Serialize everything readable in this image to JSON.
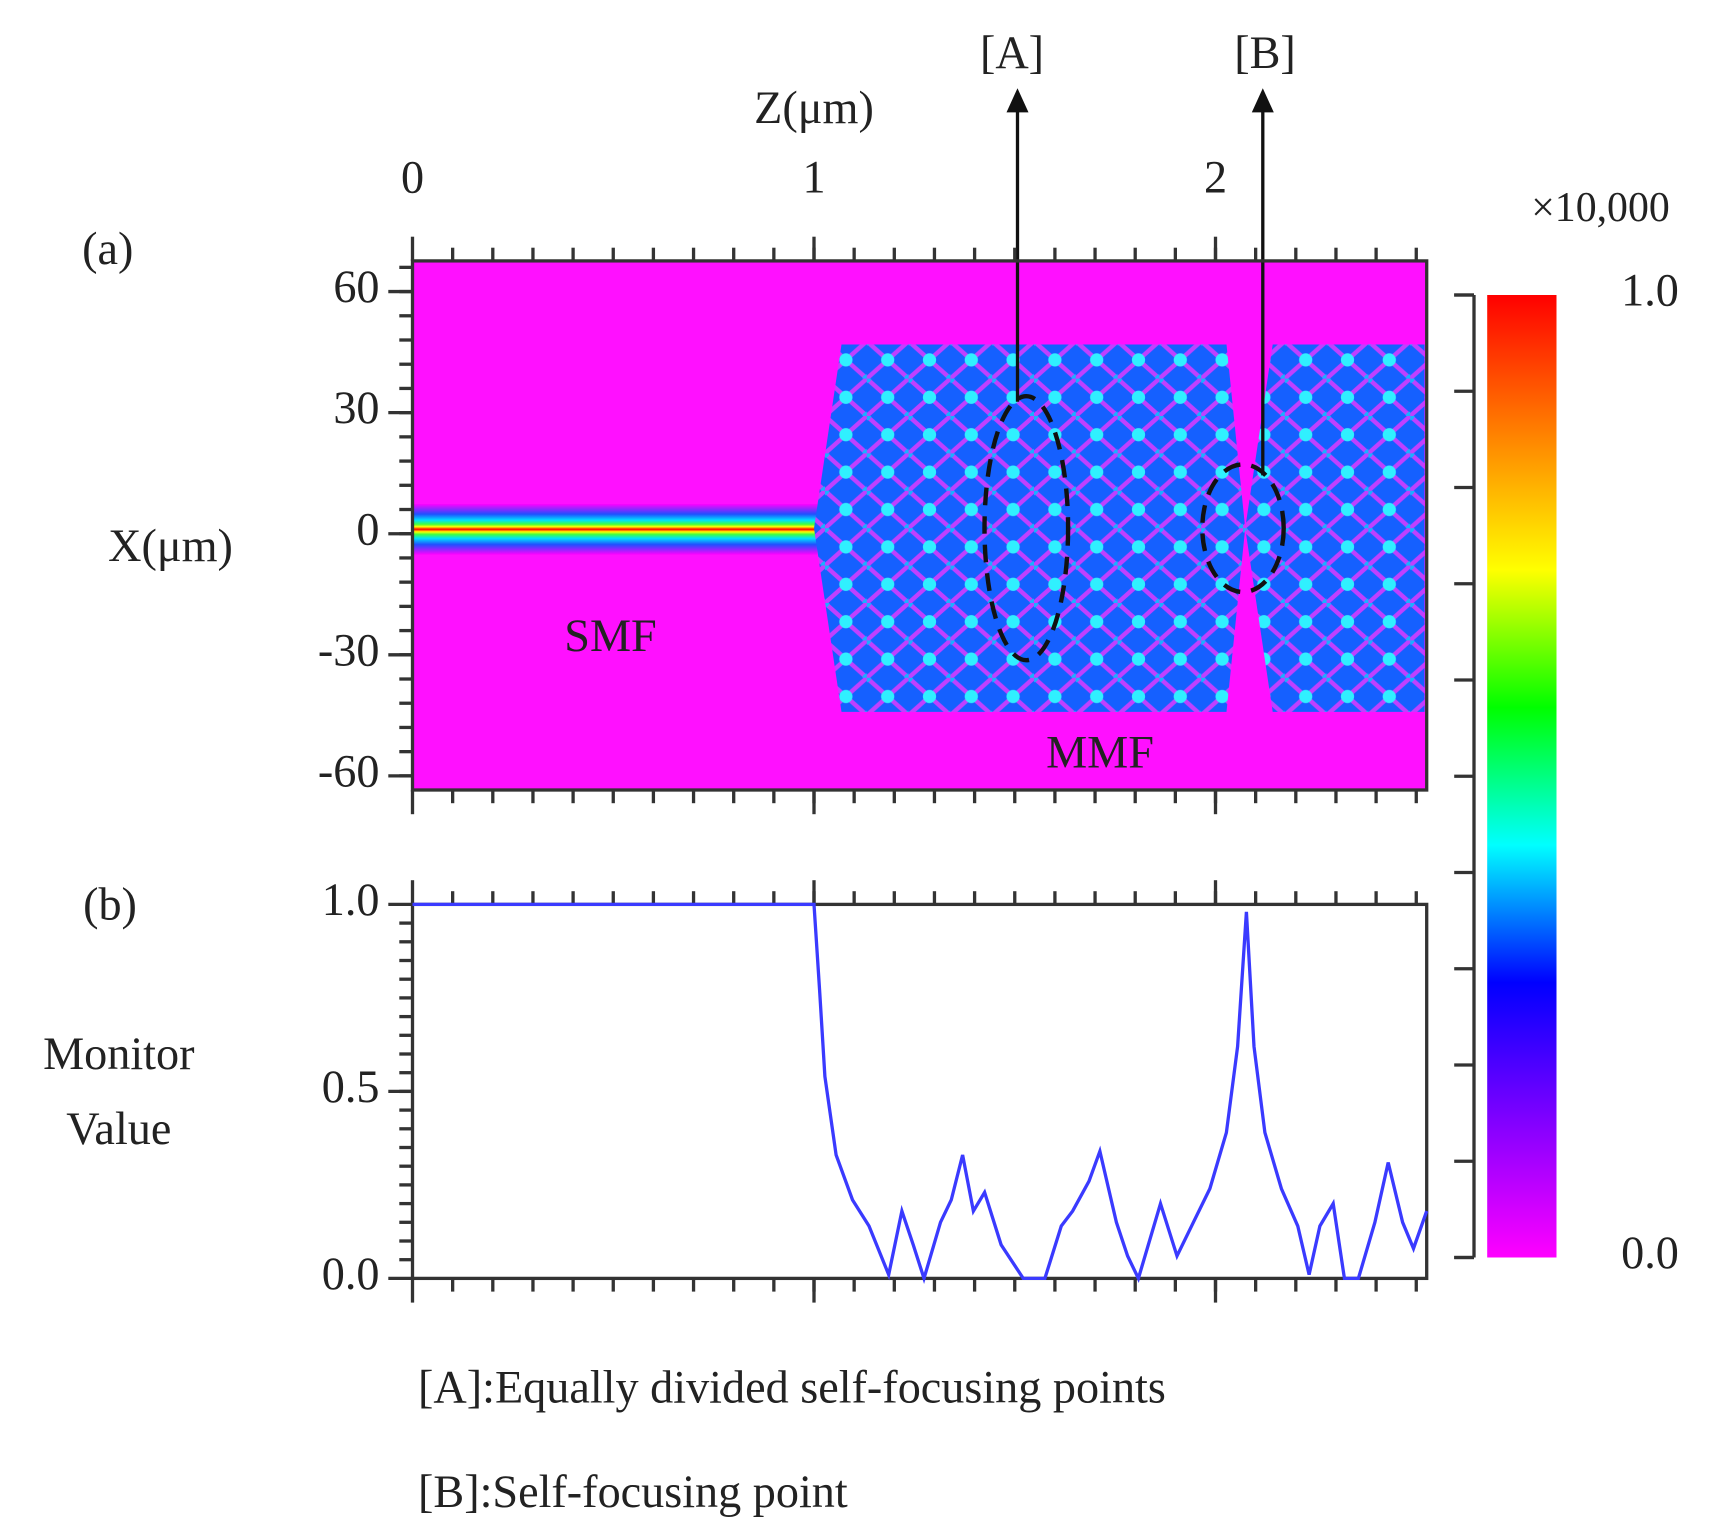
{
  "chart_data": [
    {
      "type": "heatmap",
      "panel_label": "(a)",
      "xlabel": "Z(μm)",
      "ylabel": "X(μm)",
      "xlim": [
        0,
        2.526
      ],
      "xticks": [
        0,
        1,
        2
      ],
      "ylim": [
        -63.5,
        67.6
      ],
      "yticks": [
        -60,
        -30,
        0,
        30,
        60
      ],
      "regions": [
        "SMF",
        "MMF"
      ],
      "annotations": [
        "[A]",
        "[B]"
      ],
      "colorbar": {
        "label": "×10,000",
        "colors": [
          "#ff00ff",
          "#8000ff",
          "#0000ff",
          "#00ffff",
          "#00ff00",
          "#ffff00",
          "#ff8000",
          "#ff0000"
        ],
        "lim": [
          0,
          1
        ],
        "ticks": [
          {
            "value": 0,
            "label": "0.0"
          },
          {
            "value": 1,
            "label": "1.0"
          }
        ]
      }
    },
    {
      "type": "line",
      "panel_label": "(b)",
      "ylabel": [
        "Monitor",
        "Value"
      ],
      "xlim": [
        0,
        2.526
      ],
      "xticks": [
        0,
        1,
        2
      ],
      "ylim": [
        0,
        1
      ],
      "yticks": [
        {
          "value": 0,
          "label": "0.0"
        },
        {
          "value": 0.5,
          "label": "0.5"
        },
        {
          "value": 1,
          "label": "1.0"
        }
      ],
      "x": [
        0,
        1.0,
        1.014,
        1.027,
        1.055,
        1.096,
        1.137,
        1.186,
        1.219,
        1.247,
        1.274,
        1.315,
        1.342,
        1.37,
        1.397,
        1.425,
        1.466,
        1.521,
        1.575,
        1.616,
        1.644,
        1.685,
        1.712,
        1.753,
        1.781,
        1.808,
        1.863,
        1.904,
        1.945,
        1.986,
        2.027,
        2.055,
        2.077,
        2.096,
        2.123,
        2.164,
        2.205,
        2.233,
        2.26,
        2.293,
        2.321,
        2.356,
        2.397,
        2.43,
        2.466,
        2.493,
        2.526
      ],
      "series": [
        {
          "color": "#3a3aff",
          "values": [
            1.0,
            1.0,
            0.77,
            0.54,
            0.33,
            0.21,
            0.14,
            0.01,
            0.18,
            0.09,
            0.0,
            0.15,
            0.21,
            0.33,
            0.18,
            0.23,
            0.09,
            0.0,
            0.0,
            0.14,
            0.18,
            0.26,
            0.34,
            0.15,
            0.06,
            0.0,
            0.2,
            0.06,
            0.15,
            0.24,
            0.39,
            0.62,
            0.98,
            0.62,
            0.39,
            0.24,
            0.14,
            0.01,
            0.14,
            0.2,
            0.0,
            0.0,
            0.15,
            0.31,
            0.15,
            0.08,
            0.18
          ]
        }
      ]
    }
  ],
  "footnotes": [
    "[A]:Equally divided self-focusing points",
    "[B]:Self-focusing point"
  ]
}
